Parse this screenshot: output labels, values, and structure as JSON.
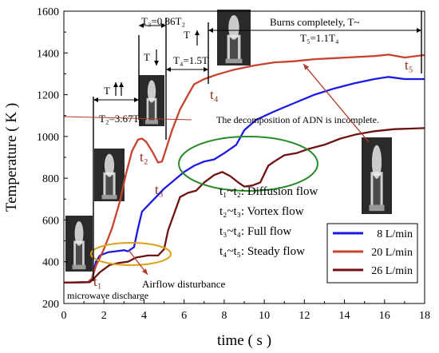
{
  "chart_data": {
    "type": "line",
    "xlabel": "time ( s )",
    "ylabel": "Temperature ( K )",
    "xlim": [
      0,
      18
    ],
    "ylim": [
      200,
      1600
    ],
    "xticks": [
      "0",
      "2",
      "4",
      "6",
      "8",
      "10",
      "12",
      "14",
      "16",
      "18"
    ],
    "yticks": [
      "200",
      "400",
      "600",
      "800",
      "1000",
      "1200",
      "1400",
      "1600"
    ],
    "grid": false,
    "legend_position": "bottom-right",
    "series": [
      {
        "name": "8 L/min",
        "color": "#1a1ae6",
        "points": [
          [
            0,
            300
          ],
          [
            1.2,
            302
          ],
          [
            1.4,
            315
          ],
          [
            1.6,
            400
          ],
          [
            1.8,
            430
          ],
          [
            2.2,
            445
          ],
          [
            2.6,
            450
          ],
          [
            3.0,
            455
          ],
          [
            3.2,
            450
          ],
          [
            3.5,
            470
          ],
          [
            3.7,
            560
          ],
          [
            3.9,
            640
          ],
          [
            4.2,
            670
          ],
          [
            4.6,
            710
          ],
          [
            5.0,
            750
          ],
          [
            5.5,
            790
          ],
          [
            6.0,
            830
          ],
          [
            6.5,
            860
          ],
          [
            7.0,
            880
          ],
          [
            7.5,
            890
          ],
          [
            8.0,
            920
          ],
          [
            8.6,
            960
          ],
          [
            9.0,
            1030
          ],
          [
            9.6,
            1080
          ],
          [
            10.5,
            1120
          ],
          [
            11.5,
            1160
          ],
          [
            12.5,
            1200
          ],
          [
            13.5,
            1230
          ],
          [
            14.5,
            1255
          ],
          [
            15.5,
            1275
          ],
          [
            16.2,
            1285
          ],
          [
            17.0,
            1275
          ],
          [
            18.0,
            1275
          ]
        ]
      },
      {
        "name": "20 L/min",
        "color": "#c8432e",
        "points": [
          [
            0,
            300
          ],
          [
            1.2,
            302
          ],
          [
            1.4,
            320
          ],
          [
            1.6,
            380
          ],
          [
            2.0,
            460
          ],
          [
            2.4,
            560
          ],
          [
            2.8,
            690
          ],
          [
            3.1,
            820
          ],
          [
            3.4,
            930
          ],
          [
            3.7,
            985
          ],
          [
            3.9,
            990
          ],
          [
            4.1,
            975
          ],
          [
            4.4,
            930
          ],
          [
            4.7,
            875
          ],
          [
            4.9,
            880
          ],
          [
            5.1,
            940
          ],
          [
            5.4,
            1030
          ],
          [
            5.8,
            1130
          ],
          [
            6.2,
            1200
          ],
          [
            6.5,
            1250
          ],
          [
            7.0,
            1275
          ],
          [
            7.6,
            1295
          ],
          [
            8.5,
            1320
          ],
          [
            9.5,
            1340
          ],
          [
            10.5,
            1355
          ],
          [
            11.5,
            1360
          ],
          [
            12.5,
            1370
          ],
          [
            13.5,
            1375
          ],
          [
            14.5,
            1380
          ],
          [
            15.5,
            1385
          ],
          [
            16.2,
            1392
          ],
          [
            17.0,
            1378
          ],
          [
            18.0,
            1390
          ]
        ]
      },
      {
        "name": "26 L/min",
        "color": "#6e1212",
        "points": [
          [
            0,
            300
          ],
          [
            1.3,
            302
          ],
          [
            1.5,
            320
          ],
          [
            1.8,
            350
          ],
          [
            2.3,
            385
          ],
          [
            2.8,
            395
          ],
          [
            3.2,
            400
          ],
          [
            3.6,
            420
          ],
          [
            4.2,
            430
          ],
          [
            4.7,
            430
          ],
          [
            5.0,
            460
          ],
          [
            5.2,
            550
          ],
          [
            5.5,
            630
          ],
          [
            5.8,
            710
          ],
          [
            6.2,
            730
          ],
          [
            6.6,
            740
          ],
          [
            7.0,
            780
          ],
          [
            7.5,
            815
          ],
          [
            7.9,
            830
          ],
          [
            8.3,
            810
          ],
          [
            8.7,
            780
          ],
          [
            9.0,
            760
          ],
          [
            9.4,
            765
          ],
          [
            9.8,
            780
          ],
          [
            10.2,
            860
          ],
          [
            10.5,
            880
          ],
          [
            11.0,
            910
          ],
          [
            11.6,
            920
          ],
          [
            12.2,
            940
          ],
          [
            13.0,
            960
          ],
          [
            13.8,
            990
          ],
          [
            14.6,
            1010
          ],
          [
            15.5,
            1025
          ],
          [
            16.5,
            1035
          ],
          [
            18.0,
            1040
          ]
        ]
      }
    ],
    "annotations": {
      "t1": "t₁",
      "t2": "t₂",
      "t3": "t₃",
      "t4": "t₄",
      "t5": "t₅",
      "t_arrow_label": "T",
      "t2_relation": "T₂=3.67T₁",
      "t3_relation": "T₃=0.86T₂",
      "t4_relation": "T₄=1.5T",
      "burns_line1": "Burns completely, T~",
      "burns_line2": "T₅=1.1T₄",
      "adn_note": "The decomposition of ADN is incomplete.",
      "airflow_note": "Airflow disturbance",
      "microwave_note": "microwave discharge",
      "phases": [
        {
          "label": "t₁~t₂: Diffusion flow"
        },
        {
          "label": "t₂~t₃: Vortex flow"
        },
        {
          "label": "t₃~t₄: Full flow"
        },
        {
          "label": "t₄~t₅: Steady flow"
        }
      ]
    },
    "ellipse_colors": {
      "green": "#2a8a2a",
      "orange": "#d9a21a"
    }
  }
}
